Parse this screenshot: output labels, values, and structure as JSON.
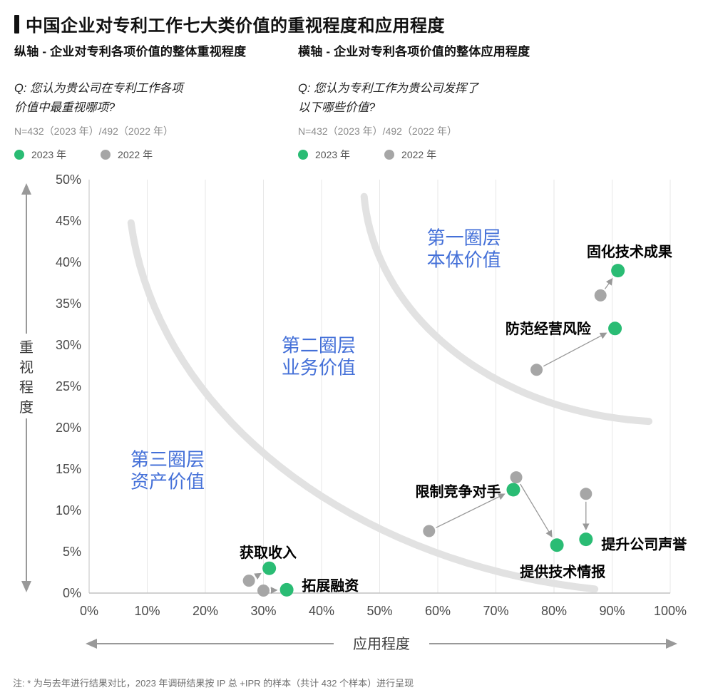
{
  "accent": {
    "green": "#2abc74",
    "gray": "#a6a6a6",
    "blue": "#4470d8",
    "arc": "#e2e2e2",
    "grid": "#e7e7e7",
    "axis": "#c2c2c2",
    "arrow": "#999999",
    "tick": "#4a4a4a",
    "axis_label": "#3c3c3c"
  },
  "header": {
    "title": "中国企业对专利工作七大类价值的重视程度和应用程度"
  },
  "columns": {
    "left": {
      "subtitle": "纵轴 - 企业对专利各项价值的整体重视程度",
      "q_line1": "Q: 您认为贵公司在专利工作各项",
      "q_line2": "价值中最重视哪项?",
      "n": "N=432（2023 年）/492（2022 年）",
      "legend_2023": "2023 年",
      "legend_2022": "2022 年"
    },
    "right": {
      "subtitle": "横轴 - 企业对专利各项价值的整体应用程度",
      "q_line1": "Q: 您认为专利工作为贵公司发挥了",
      "q_line2": "以下哪些价值?",
      "n": "N=432（2023 年）/492（2022 年）",
      "legend_2023": "2023 年",
      "legend_2022": "2022 年"
    }
  },
  "chart_data": {
    "type": "scatter",
    "title": "中国企业对专利工作七大类价值的重视程度和应用程度",
    "xlabel": "应用程度",
    "ylabel": "重视程度",
    "xlim": [
      0,
      100
    ],
    "ylim": [
      0,
      50
    ],
    "x_ticks": [
      0,
      10,
      20,
      30,
      40,
      50,
      60,
      70,
      80,
      90,
      100
    ],
    "y_ticks": [
      0,
      5,
      10,
      15,
      20,
      25,
      30,
      35,
      40,
      45,
      50
    ],
    "tick_suffix": "%",
    "grid": "vertical-only",
    "legend_position": "top-left-header",
    "series": [
      {
        "name": "2023 年",
        "color_key": "green"
      },
      {
        "name": "2022 年",
        "color_key": "gray"
      }
    ],
    "zones": [
      {
        "line1": "第一圈层",
        "line2": "本体价值",
        "label_x": 64.5,
        "label_y": 42.2
      },
      {
        "line1": "第二圈层",
        "line2": "业务价值",
        "label_x": 39.5,
        "label_y": 29.2
      },
      {
        "line1": "第三圈层",
        "line2": "资产价值",
        "label_x": 13.5,
        "label_y": 15.4
      }
    ],
    "arcs": [
      {
        "rx_pct": 52.8,
        "ry_pct": 58.6,
        "deg_start": 94,
        "deg_end": 176
      },
      {
        "rx_pct": 93.3,
        "ry_pct": 100,
        "deg_start": 98,
        "deg_end": 174
      }
    ],
    "points": [
      {
        "label": "固化技术成果",
        "v2023": [
          91,
          39
        ],
        "v2022": [
          88,
          36
        ],
        "label_pos": [
          93,
          41.3
        ]
      },
      {
        "label": "防范经营风险",
        "v2023": [
          90.5,
          32
        ],
        "v2022": [
          77,
          27
        ],
        "label_pos": [
          79,
          32
        ]
      },
      {
        "label": "限制竞争对手",
        "v2023": [
          73,
          12.5
        ],
        "v2022": [
          58.5,
          7.5
        ],
        "label_pos": [
          63.5,
          12.3
        ]
      },
      {
        "label": "提升公司声誉",
        "v2023": [
          85.5,
          6.5
        ],
        "v2022": [
          85.5,
          12
        ],
        "label_pos": [
          95.5,
          5.9
        ]
      },
      {
        "label": "提供技术情报",
        "v2023": [
          80.5,
          5.8
        ],
        "v2022": [
          73.5,
          14
        ],
        "label_pos": [
          81.5,
          2.6
        ]
      },
      {
        "label": "获取收入",
        "v2023": [
          31,
          3
        ],
        "v2022": [
          27.5,
          1.5
        ],
        "label_pos": [
          30.8,
          4.9
        ]
      },
      {
        "label": "拓展融资",
        "v2023": [
          34,
          0.4
        ],
        "v2022": [
          30,
          0.3
        ],
        "label_pos": [
          41.5,
          0.9
        ]
      }
    ],
    "footnote": "注: * 为与去年进行结果对比，2023 年调研结果按 IP 总 +IPR 的样本（共计 432 个样本）进行呈现"
  }
}
